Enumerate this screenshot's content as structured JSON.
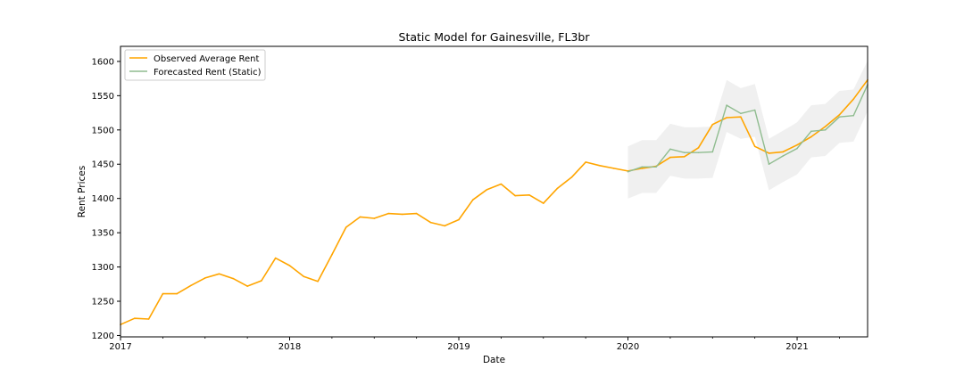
{
  "chart_data": {
    "type": "line",
    "title": "Static Model for Gainesville, FL3br",
    "xlabel": "Date",
    "ylabel": "Rent Prices",
    "xlim": [
      "2017-01",
      "2021-06"
    ],
    "ylim": [
      1198,
      1622
    ],
    "x_ticks": [
      "2017",
      "2018",
      "2019",
      "2020",
      "2021"
    ],
    "y_ticks": [
      1200,
      1250,
      1300,
      1350,
      1400,
      1450,
      1500,
      1550,
      1600
    ],
    "grid": false,
    "legend_position": "upper-left",
    "confidence_band": true,
    "series": [
      {
        "name": "Observed Average Rent",
        "color": "#ffa500",
        "x": [
          "2017-01",
          "2017-02",
          "2017-03",
          "2017-04",
          "2017-05",
          "2017-06",
          "2017-07",
          "2017-08",
          "2017-09",
          "2017-10",
          "2017-11",
          "2017-12",
          "2018-01",
          "2018-02",
          "2018-03",
          "2018-04",
          "2018-05",
          "2018-06",
          "2018-07",
          "2018-08",
          "2018-09",
          "2018-10",
          "2018-11",
          "2018-12",
          "2019-01",
          "2019-02",
          "2019-03",
          "2019-04",
          "2019-05",
          "2019-06",
          "2019-07",
          "2019-08",
          "2019-09",
          "2019-10",
          "2019-11",
          "2019-12",
          "2020-01",
          "2020-02",
          "2020-03",
          "2020-04",
          "2020-05",
          "2020-06",
          "2020-07",
          "2020-08",
          "2020-09",
          "2020-10",
          "2020-11",
          "2020-12",
          "2021-01",
          "2021-02",
          "2021-03",
          "2021-04",
          "2021-05",
          "2021-06"
        ],
        "values": [
          1216,
          1225,
          1224,
          1261,
          1261,
          1273,
          1284,
          1290,
          1283,
          1272,
          1280,
          1313,
          1302,
          1286,
          1279,
          1318,
          1358,
          1373,
          1371,
          1378,
          1377,
          1378,
          1365,
          1360,
          1369,
          1398,
          1413,
          1421,
          1404,
          1405,
          1393,
          1415,
          1431,
          1453,
          1448,
          1444,
          1440,
          1444,
          1447,
          1460,
          1461,
          1474,
          1508,
          1518,
          1519,
          1476,
          1466,
          1468,
          1478,
          1490,
          1505,
          1522,
          1545,
          1573
        ]
      },
      {
        "name": "Forecasted Rent (Static)",
        "color": "#8fbc8f",
        "x": [
          "2020-01",
          "2020-02",
          "2020-03",
          "2020-04",
          "2020-05",
          "2020-06",
          "2020-07",
          "2020-08",
          "2020-09",
          "2020-10",
          "2020-11",
          "2020-12",
          "2021-01",
          "2021-02",
          "2021-03",
          "2021-04",
          "2021-05",
          "2021-06"
        ],
        "values": [
          1439,
          1446,
          1446,
          1472,
          1467,
          1467,
          1468,
          1536,
          1524,
          1529,
          1450,
          1462,
          1473,
          1498,
          1500,
          1519,
          1521,
          1566
        ],
        "lower": [
          1400,
          1408,
          1408,
          1433,
          1429,
          1429,
          1430,
          1497,
          1487,
          1490,
          1412,
          1424,
          1435,
          1460,
          1462,
          1481,
          1483,
          1527
        ],
        "upper": [
          1476,
          1485,
          1485,
          1509,
          1504,
          1504,
          1505,
          1573,
          1561,
          1567,
          1487,
          1499,
          1511,
          1536,
          1538,
          1557,
          1559,
          1601
        ]
      }
    ]
  }
}
